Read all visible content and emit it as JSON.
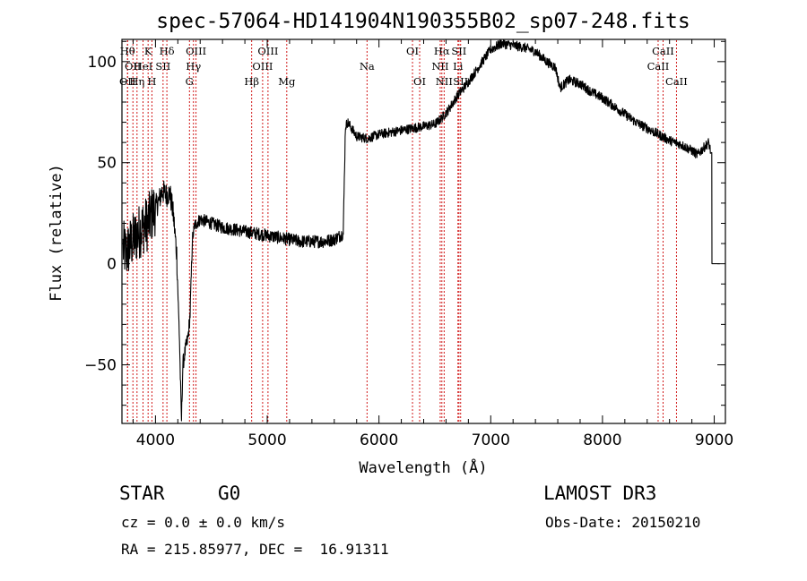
{
  "chart_data": {
    "type": "line",
    "title": "spec-57064-HD141904N190355B02_sp07-248.fits",
    "xlabel": "Wavelength (Å)",
    "ylabel": "Flux (relative)",
    "xlim": [
      3700,
      9100
    ],
    "ylim": [
      -79,
      111
    ],
    "x_ticks": [
      {
        "value": 4000,
        "label": "4000"
      },
      {
        "value": 5000,
        "label": "5000"
      },
      {
        "value": 6000,
        "label": "6000"
      },
      {
        "value": 7000,
        "label": "7000"
      },
      {
        "value": 8000,
        "label": "8000"
      },
      {
        "value": 9000,
        "label": "9000"
      }
    ],
    "y_ticks": [
      {
        "value": -50,
        "label": "−50"
      },
      {
        "value": 0,
        "label": "0"
      },
      {
        "value": 50,
        "label": "50"
      },
      {
        "value": 100,
        "label": "100"
      }
    ],
    "line_color": "#000000",
    "line_marker_color": "#cc0000",
    "spectrum_anchors": [
      [
        3710,
        8
      ],
      [
        3740,
        5
      ],
      [
        3780,
        10
      ],
      [
        3830,
        14
      ],
      [
        3880,
        18
      ],
      [
        3930,
        20
      ],
      [
        3980,
        26
      ],
      [
        4030,
        31
      ],
      [
        4060,
        36
      ],
      [
        4100,
        34
      ],
      [
        4130,
        35
      ],
      [
        4160,
        24
      ],
      [
        4190,
        5
      ],
      [
        4215,
        -38
      ],
      [
        4232,
        -78
      ],
      [
        4245,
        -50
      ],
      [
        4270,
        -42
      ],
      [
        4290,
        -37
      ],
      [
        4310,
        -25
      ],
      [
        4330,
        12
      ],
      [
        4350,
        19
      ],
      [
        4400,
        22
      ],
      [
        4500,
        20
      ],
      [
        4600,
        18
      ],
      [
        4700,
        17
      ],
      [
        4800,
        16
      ],
      [
        4900,
        15
      ],
      [
        5000,
        14
      ],
      [
        5100,
        13
      ],
      [
        5200,
        12
      ],
      [
        5300,
        11
      ],
      [
        5400,
        11
      ],
      [
        5500,
        11
      ],
      [
        5600,
        12
      ],
      [
        5680,
        15
      ],
      [
        5700,
        68
      ],
      [
        5720,
        70
      ],
      [
        5800,
        63
      ],
      [
        5900,
        62
      ],
      [
        6000,
        64
      ],
      [
        6100,
        65
      ],
      [
        6200,
        66
      ],
      [
        6300,
        67
      ],
      [
        6400,
        68
      ],
      [
        6500,
        69
      ],
      [
        6560,
        72
      ],
      [
        6620,
        76
      ],
      [
        6700,
        83
      ],
      [
        6800,
        90
      ],
      [
        6900,
        98
      ],
      [
        7000,
        106
      ],
      [
        7100,
        109
      ],
      [
        7200,
        108
      ],
      [
        7300,
        107
      ],
      [
        7400,
        105
      ],
      [
        7500,
        100
      ],
      [
        7580,
        97
      ],
      [
        7620,
        87
      ],
      [
        7700,
        91
      ],
      [
        7800,
        89
      ],
      [
        7900,
        85
      ],
      [
        8000,
        82
      ],
      [
        8100,
        78
      ],
      [
        8200,
        74
      ],
      [
        8300,
        70
      ],
      [
        8400,
        67
      ],
      [
        8500,
        64
      ],
      [
        8600,
        61
      ],
      [
        8700,
        59
      ],
      [
        8800,
        56
      ],
      [
        8850,
        54
      ],
      [
        8900,
        57
      ],
      [
        8950,
        60
      ],
      [
        8970,
        55
      ],
      [
        8980,
        0
      ]
    ],
    "spectral_lines": [
      {
        "wl": 3750,
        "label": "Hθ",
        "row": 1
      },
      {
        "wl": 3750,
        "label": "OII",
        "row": 3
      },
      {
        "wl": 3798,
        "label": "OII",
        "row": 2
      },
      {
        "wl": 3835,
        "label": "Hη",
        "row": 3
      },
      {
        "wl": 3889,
        "label": "HeI",
        "row": 2
      },
      {
        "wl": 3934,
        "label": "K",
        "row": 1
      },
      {
        "wl": 3968,
        "label": "H",
        "row": 3
      },
      {
        "wl": 4068,
        "label": "SII",
        "row": 2
      },
      {
        "wl": 4102,
        "label": "Hδ",
        "row": 1
      },
      {
        "wl": 4304,
        "label": "G",
        "row": 3
      },
      {
        "wl": 4340,
        "label": "Hγ",
        "row": 2
      },
      {
        "wl": 4363,
        "label": "OIII",
        "row": 1
      },
      {
        "wl": 4861,
        "label": "Hβ",
        "row": 3
      },
      {
        "wl": 4959,
        "label": "OIII",
        "row": 2
      },
      {
        "wl": 5007,
        "label": "OIII",
        "row": 1
      },
      {
        "wl": 5175,
        "label": "Mg",
        "row": 3
      },
      {
        "wl": 5893,
        "label": "Na",
        "row": 2
      },
      {
        "wl": 6300,
        "label": "OI",
        "row": 1
      },
      {
        "wl": 6364,
        "label": "OI",
        "row": 3
      },
      {
        "wl": 6548,
        "label": "NII",
        "row": 2
      },
      {
        "wl": 6563,
        "label": "Hα",
        "row": 1
      },
      {
        "wl": 6583,
        "label": "NII",
        "row": 3
      },
      {
        "wl": 6707,
        "label": "Li",
        "row": 2
      },
      {
        "wl": 6716,
        "label": "SII",
        "row": 1
      },
      {
        "wl": 6731,
        "label": "SII",
        "row": 3
      },
      {
        "wl": 8498,
        "label": "CaII",
        "row": 2
      },
      {
        "wl": 8542,
        "label": "CaII",
        "row": 1
      },
      {
        "wl": 8662,
        "label": "CaII",
        "row": 3
      }
    ]
  },
  "info": {
    "class": "STAR",
    "subclass": "G0",
    "survey": "LAMOST DR3",
    "cz": "cz = 0.0 ± 0.0 km/s",
    "obs_date": "Obs-Date: 20150210",
    "coords": "RA = 215.85977, DEC =  16.91311"
  }
}
